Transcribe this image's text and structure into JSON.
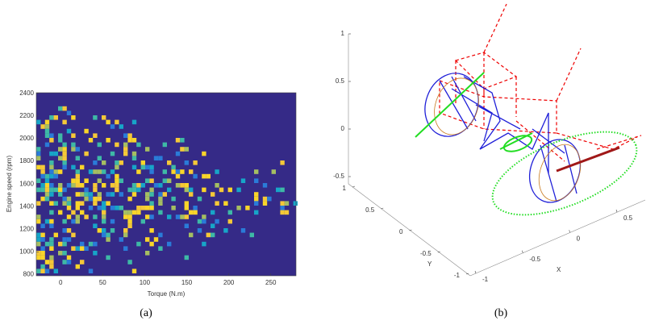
{
  "figure_a": {
    "xlabel": "Torque (N.m)",
    "ylabel": "Engine speed (rpm)",
    "xlim": [
      -29,
      280
    ],
    "xticks": [
      0,
      50,
      100,
      150,
      200,
      250
    ],
    "ylim": [
      790,
      2405
    ],
    "yticks": [
      800,
      1000,
      1200,
      1400,
      1600,
      1800,
      2000,
      2200,
      2400
    ],
    "caption": "(a)"
  },
  "figure_b": {
    "xlabel": "X",
    "ylabel": "Y",
    "zlim": [
      -0.5,
      1
    ],
    "zticks": [
      -0.5,
      0,
      0.5,
      1
    ],
    "ylim": [
      -1,
      1
    ],
    "yticks": [
      -1,
      -0.5,
      0,
      0.5,
      1
    ],
    "xlim": [
      -1,
      0.5
    ],
    "xticks": [
      -1,
      -0.5,
      0,
      0.5
    ],
    "caption": "(b)"
  }
}
